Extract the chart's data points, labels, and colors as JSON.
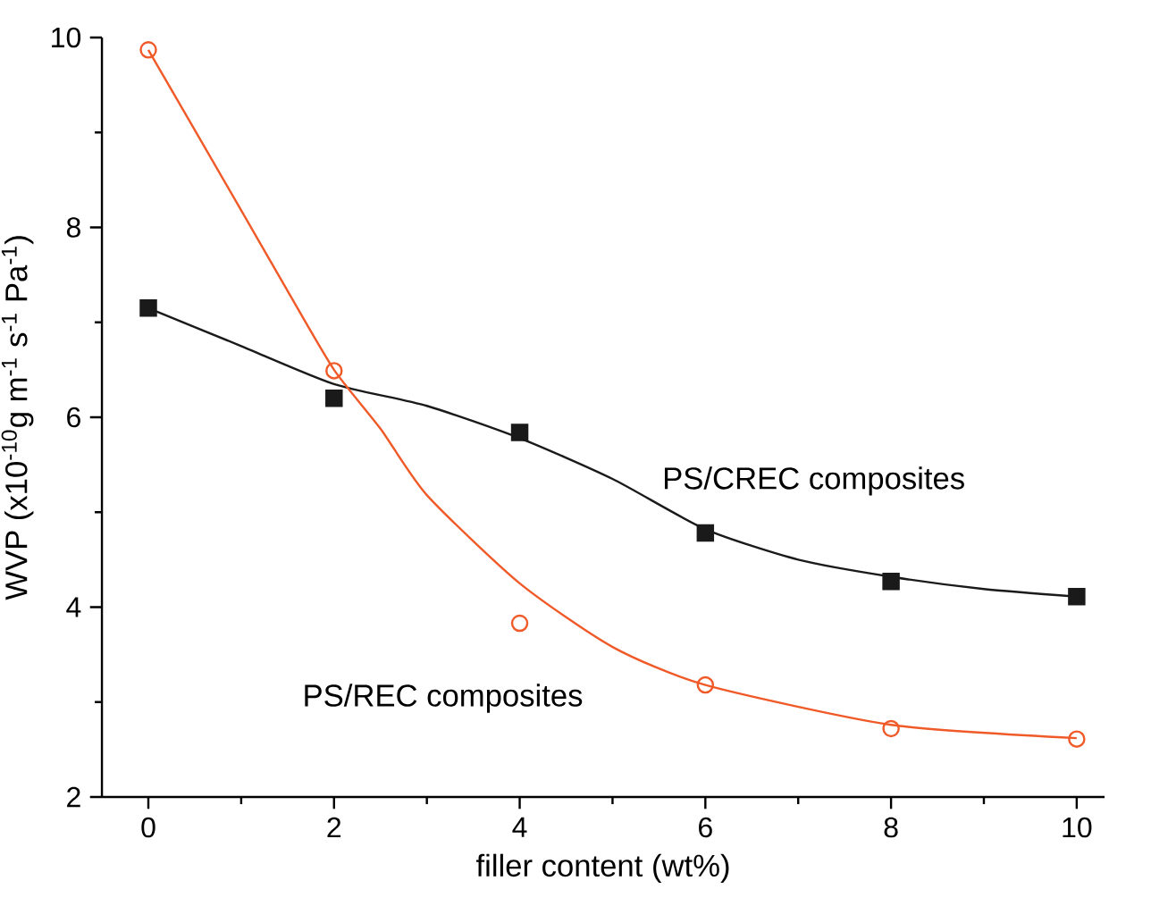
{
  "chart_data": {
    "type": "scatter",
    "xlabel": "filler content (wt%)",
    "ylabel": "WVP (x10$^{-10}$g m$^{-1}$ s$^{-1}$ Pa$^{-1}$)",
    "xlim": [
      -0.5,
      10.3
    ],
    "ylim": [
      2,
      10
    ],
    "xticks": [
      0,
      2,
      4,
      6,
      8,
      10
    ],
    "yticks": [
      2,
      4,
      6,
      8,
      10
    ],
    "grid": false,
    "legend": false,
    "series": [
      {
        "name": "PS/CREC composites",
        "marker": "square",
        "color": "#1a1a1a",
        "x": [
          0,
          2,
          4,
          6,
          8,
          10
        ],
        "values": [
          7.15,
          6.2,
          5.84,
          4.78,
          4.27,
          4.11
        ]
      },
      {
        "name": "PS/REC composites",
        "marker": "circle",
        "color": "#f05a28",
        "x": [
          0,
          2,
          4,
          6,
          8,
          10
        ],
        "values": [
          9.87,
          6.49,
          3.83,
          3.18,
          2.72,
          2.61
        ]
      },
      {
        "type": "line",
        "marker": "none",
        "color": "#1a1a1a",
        "x": [
          0,
          1,
          2,
          3,
          4,
          5,
          6,
          7,
          8,
          9,
          10
        ],
        "values": [
          7.15,
          6.75,
          6.35,
          6.12,
          5.78,
          5.35,
          4.82,
          4.5,
          4.32,
          4.19,
          4.11
        ]
      },
      {
        "type": "line",
        "marker": "none",
        "color": "#f05a28",
        "x": [
          0,
          1,
          1.5,
          2,
          2.5,
          3,
          4,
          5,
          6,
          8,
          10
        ],
        "values": [
          9.87,
          8.18,
          7.33,
          6.5,
          5.88,
          5.18,
          4.25,
          3.58,
          3.18,
          2.76,
          2.62
        ]
      }
    ]
  }
}
